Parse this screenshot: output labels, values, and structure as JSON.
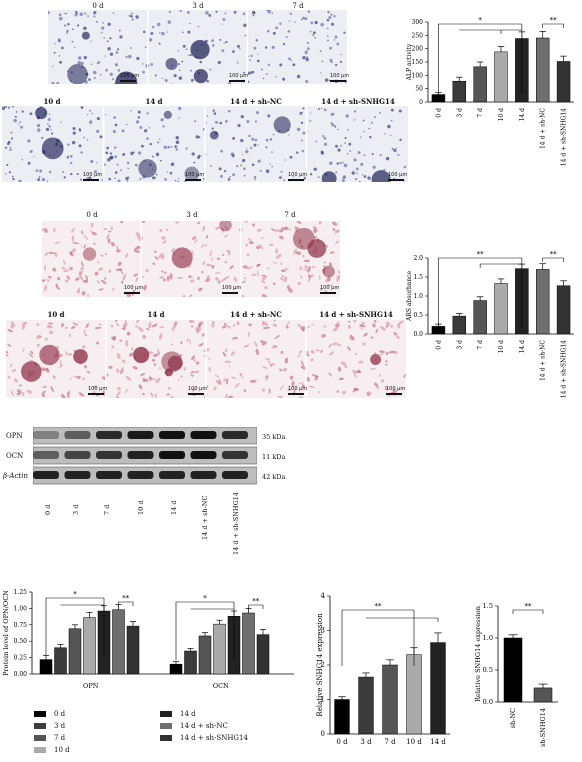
{
  "alp_panel": {
    "top_labels": [
      "0 d",
      "3 d",
      "7 d"
    ],
    "bottom_labels": [
      "10 d",
      "14 d",
      "14 d + sh-NC",
      "14 d + sh-SNHG14"
    ],
    "scale_label": "100 μm"
  },
  "ars_panel": {
    "top_labels": [
      "0 d",
      "3 d",
      "7 d"
    ],
    "bottom_labels": [
      "10 d",
      "14 d",
      "14 d + sh-NC",
      "14 d + sh-SNHG14"
    ],
    "scale_label": "100 μm"
  },
  "western_blot": {
    "rows": [
      "OPN",
      "OCN",
      "β-Actin"
    ],
    "kda": [
      "35 kDa",
      "11 kDa",
      "42 kDa"
    ],
    "lanes": [
      "0 d",
      "3 d",
      "7 d",
      "10 d",
      "14 d",
      "14 d + sh-NC",
      "14 d + sh-SNHG14"
    ]
  },
  "chart_data": [
    {
      "type": "bar",
      "id": "alp",
      "ylabel": "ALP activity",
      "categories": [
        "0 d",
        "3 d",
        "7 d",
        "10 d",
        "14 d",
        "14 d + sh-NC",
        "14 d + sh-SNHG14"
      ],
      "values": [
        28,
        78,
        132,
        188,
        238,
        240,
        152
      ],
      "errors": [
        8,
        15,
        18,
        20,
        25,
        25,
        20
      ],
      "colors": [
        "#000000",
        "#3b3b3b",
        "#555555",
        "#aaaaaa",
        "#222222",
        "#6e6e6e",
        "#333333"
      ],
      "ylim": [
        0,
        300
      ],
      "yticks": [
        0,
        50,
        100,
        150,
        200,
        250,
        300
      ],
      "significance": [
        "*",
        "**"
      ]
    },
    {
      "type": "bar",
      "id": "ars",
      "ylabel": "ARS absorbance",
      "categories": [
        "0 d",
        "3 d",
        "7 d",
        "10 d",
        "14 d",
        "14 d + sh-NC",
        "14 d + sh-SNHG14"
      ],
      "values": [
        0.2,
        0.47,
        0.88,
        1.33,
        1.72,
        1.7,
        1.27
      ],
      "errors": [
        0.06,
        0.07,
        0.1,
        0.12,
        0.12,
        0.15,
        0.13
      ],
      "colors": [
        "#000000",
        "#3b3b3b",
        "#555555",
        "#aaaaaa",
        "#222222",
        "#6e6e6e",
        "#333333"
      ],
      "ylim": [
        0,
        2.0
      ],
      "yticks": [
        "0.0",
        "0.5",
        "1.0",
        "1.5",
        "2.0"
      ],
      "significance": [
        "**",
        "**"
      ]
    },
    {
      "type": "bar",
      "id": "protein",
      "ylabel": "Protein level of OPN/OCN",
      "categories": [
        "OPN",
        "OCN"
      ],
      "series": [
        {
          "name": "0 d",
          "color": "#000000",
          "values": [
            0.22,
            0.15
          ],
          "errors": [
            0.06,
            0.04
          ]
        },
        {
          "name": "3 d",
          "color": "#3b3b3b",
          "values": [
            0.4,
            0.35
          ],
          "errors": [
            0.05,
            0.04
          ]
        },
        {
          "name": "7 d",
          "color": "#555555",
          "values": [
            0.69,
            0.58
          ],
          "errors": [
            0.06,
            0.05
          ]
        },
        {
          "name": "10 d",
          "color": "#aaaaaa",
          "values": [
            0.86,
            0.76
          ],
          "errors": [
            0.08,
            0.06
          ]
        },
        {
          "name": "14 d",
          "color": "#222222",
          "values": [
            0.96,
            0.88
          ],
          "errors": [
            0.08,
            0.08
          ]
        },
        {
          "name": "14 d + sh-NC",
          "color": "#6e6e6e",
          "values": [
            0.98,
            0.93
          ],
          "errors": [
            0.08,
            0.07
          ]
        },
        {
          "name": "14 d + sh-SNHG14",
          "color": "#333333",
          "values": [
            0.73,
            0.6
          ],
          "errors": [
            0.07,
            0.08
          ]
        }
      ],
      "ylim": [
        0,
        1.25
      ],
      "yticks": [
        "0.00",
        "0.25",
        "0.50",
        "0.75",
        "1.00",
        "1.25"
      ],
      "significance": [
        "*",
        "**",
        "*",
        "**"
      ]
    },
    {
      "type": "bar",
      "id": "snhg14_time",
      "ylabel": "Relative SNHG14 expression",
      "categories": [
        "0 d",
        "3 d",
        "7 d",
        "10 d",
        "14 d"
      ],
      "values": [
        1.0,
        1.65,
        2.0,
        2.3,
        2.65
      ],
      "errors": [
        0.08,
        0.12,
        0.15,
        0.2,
        0.28
      ],
      "colors": [
        "#000000",
        "#3b3b3b",
        "#555555",
        "#aaaaaa",
        "#222222"
      ],
      "ylim": [
        0,
        4
      ],
      "yticks": [
        "0",
        "1",
        "2",
        "3",
        "4"
      ],
      "significance": [
        "**"
      ]
    },
    {
      "type": "bar",
      "id": "snhg14_sh",
      "ylabel": "Relative SNHG14 expression",
      "categories": [
        "sh-NC",
        "sh-SNHG14"
      ],
      "values": [
        1.0,
        0.22
      ],
      "errors": [
        0.05,
        0.06
      ],
      "colors": [
        "#000000",
        "#555555"
      ],
      "ylim": [
        0,
        1.5
      ],
      "yticks": [
        "0.0",
        "0.5",
        "1.0",
        "1.5"
      ],
      "significance": [
        "**"
      ]
    }
  ]
}
